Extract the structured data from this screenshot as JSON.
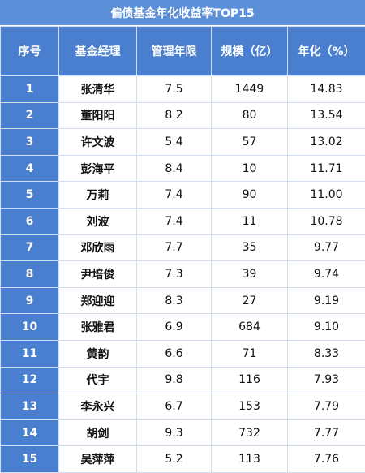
{
  "title": "偏债基金年化收益率TOP15",
  "headers": [
    "序号",
    "基金经理",
    "管理年限",
    "规模（亿）",
    "年化（%）"
  ],
  "rows": [
    [
      "1",
      "张清华",
      "7.5",
      "1449",
      "14.83"
    ],
    [
      "2",
      "董阳阳",
      "8.2",
      "80",
      "13.54"
    ],
    [
      "3",
      "许文波",
      "5.4",
      "57",
      "13.02"
    ],
    [
      "4",
      "彭海平",
      "8.4",
      "10",
      "11.71"
    ],
    [
      "5",
      "万莉",
      "7.4",
      "90",
      "11.00"
    ],
    [
      "6",
      "刘波",
      "7.4",
      "11",
      "10.78"
    ],
    [
      "7",
      "邓欣雨",
      "7.7",
      "35",
      "9.77"
    ],
    [
      "8",
      "尹培俊",
      "7.3",
      "39",
      "9.74"
    ],
    [
      "9",
      "郑迎迎",
      "8.3",
      "27",
      "9.19"
    ],
    [
      "10",
      "张雅君",
      "6.9",
      "684",
      "9.10"
    ],
    [
      "11",
      "黄韵",
      "6.6",
      "71",
      "8.33"
    ],
    [
      "12",
      "代宇",
      "9.8",
      "116",
      "7.93"
    ],
    [
      "13",
      "李永兴",
      "6.7",
      "153",
      "7.79"
    ],
    [
      "14",
      "胡剑",
      "9.3",
      "732",
      "7.77"
    ],
    [
      "15",
      "吴萍萍",
      "5.2",
      "113",
      "7.76"
    ]
  ],
  "colors": {
    "title_bg": "#5b8fd8",
    "header_bg": "#4a7fcf",
    "index_bg": "#4a7fcf",
    "border": "#d3deee"
  }
}
